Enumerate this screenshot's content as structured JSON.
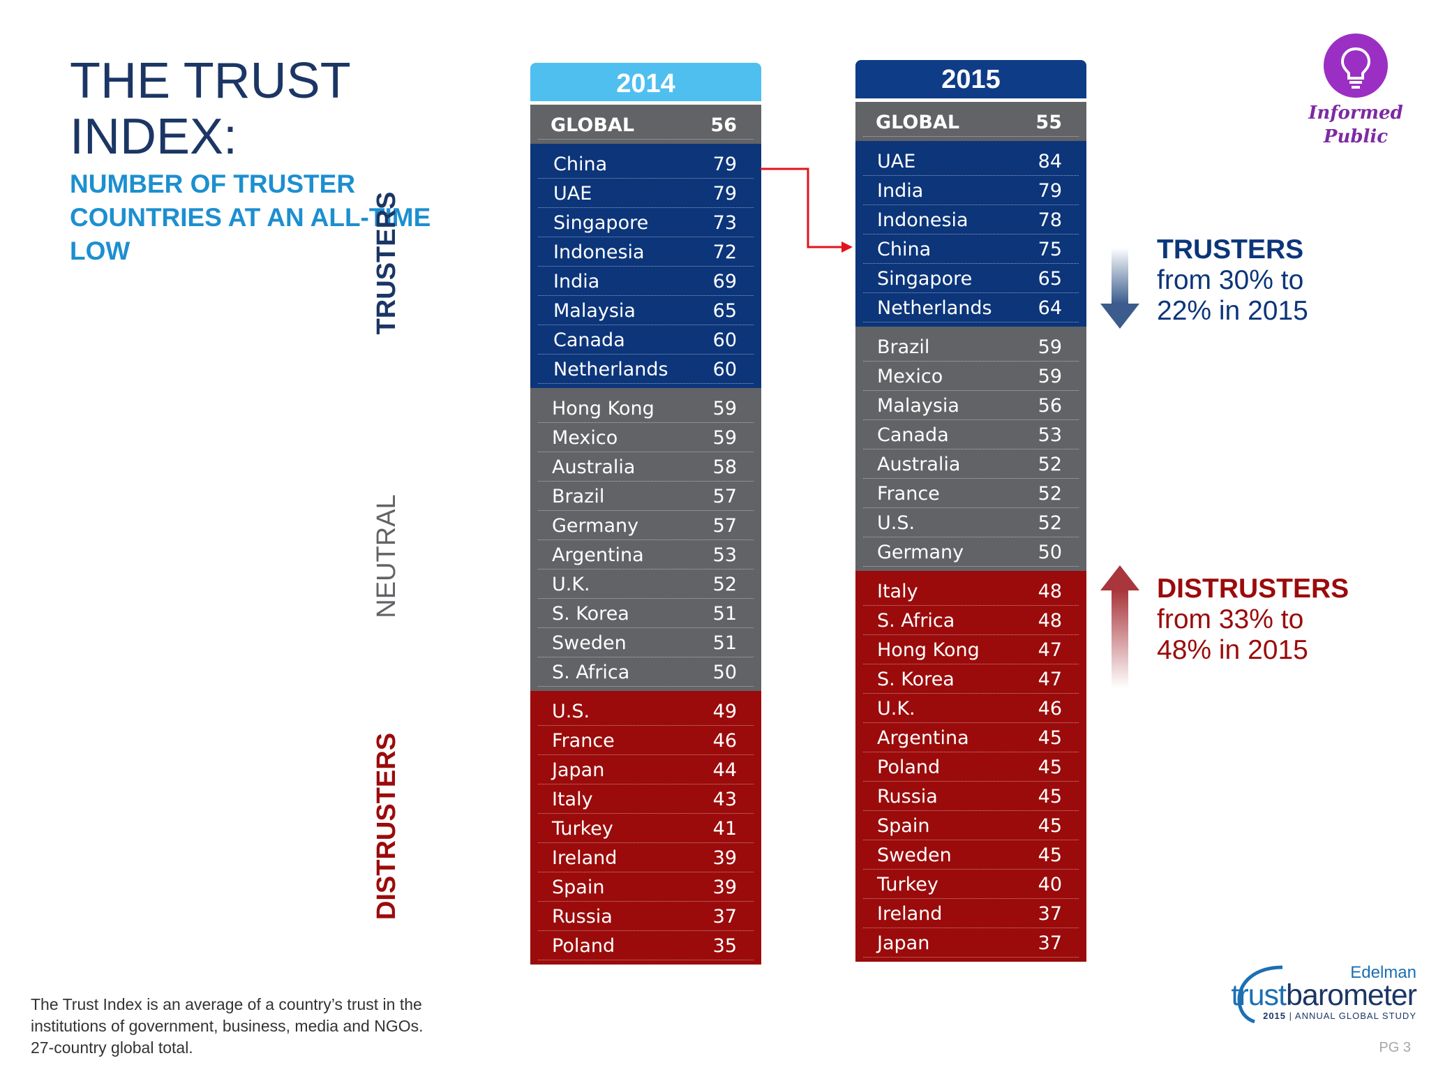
{
  "title": "THE TRUST INDEX:",
  "subtitle": "NUMBER OF TRUSTER COUNTRIES AT AN ALL-TIME LOW",
  "labels": {
    "trusters": "TRUSTERS",
    "neutral": "NEUTRAL",
    "distrusters": "DISTRUSTERS"
  },
  "col2014": {
    "year": "2014",
    "global": {
      "label": "GLOBAL",
      "value": "56"
    },
    "trusters": [
      {
        "c": "China",
        "v": "79"
      },
      {
        "c": "UAE",
        "v": "79"
      },
      {
        "c": "Singapore",
        "v": "73"
      },
      {
        "c": "Indonesia",
        "v": "72"
      },
      {
        "c": "India",
        "v": "69"
      },
      {
        "c": "Malaysia",
        "v": "65"
      },
      {
        "c": "Canada",
        "v": "60"
      },
      {
        "c": "Netherlands",
        "v": "60"
      }
    ],
    "neutral": [
      {
        "c": "Hong Kong",
        "v": "59"
      },
      {
        "c": "Mexico",
        "v": "59"
      },
      {
        "c": "Australia",
        "v": "58"
      },
      {
        "c": "Brazil",
        "v": "57"
      },
      {
        "c": "Germany",
        "v": "57"
      },
      {
        "c": "Argentina",
        "v": "53"
      },
      {
        "c": "U.K.",
        "v": "52"
      },
      {
        "c": "S. Korea",
        "v": "51"
      },
      {
        "c": "Sweden",
        "v": "51"
      },
      {
        "c": "S. Africa",
        "v": "50"
      }
    ],
    "distrusters": [
      {
        "c": "U.S.",
        "v": "49"
      },
      {
        "c": "France",
        "v": "46"
      },
      {
        "c": "Japan",
        "v": "44"
      },
      {
        "c": "Italy",
        "v": "43"
      },
      {
        "c": "Turkey",
        "v": "41"
      },
      {
        "c": "Ireland",
        "v": "39"
      },
      {
        "c": "Spain",
        "v": "39"
      },
      {
        "c": "Russia",
        "v": "37"
      },
      {
        "c": "Poland",
        "v": "35"
      }
    ]
  },
  "col2015": {
    "year": "2015",
    "global": {
      "label": "GLOBAL",
      "value": "55"
    },
    "trusters": [
      {
        "c": "UAE",
        "v": "84"
      },
      {
        "c": "India",
        "v": "79"
      },
      {
        "c": "Indonesia",
        "v": "78"
      },
      {
        "c": "China",
        "v": "75"
      },
      {
        "c": "Singapore",
        "v": "65"
      },
      {
        "c": "Netherlands",
        "v": "64"
      }
    ],
    "neutral": [
      {
        "c": "Brazil",
        "v": "59"
      },
      {
        "c": "Mexico",
        "v": "59"
      },
      {
        "c": "Malaysia",
        "v": "56"
      },
      {
        "c": "Canada",
        "v": "53"
      },
      {
        "c": "Australia",
        "v": "52"
      },
      {
        "c": "France",
        "v": "52"
      },
      {
        "c": "U.S.",
        "v": "52"
      },
      {
        "c": "Germany",
        "v": "50"
      }
    ],
    "distrusters": [
      {
        "c": "Italy",
        "v": "48"
      },
      {
        "c": "S. Africa",
        "v": "48"
      },
      {
        "c": "Hong Kong",
        "v": "47"
      },
      {
        "c": "S. Korea",
        "v": "47"
      },
      {
        "c": "U.K.",
        "v": "46"
      },
      {
        "c": "Argentina",
        "v": "45"
      },
      {
        "c": "Poland",
        "v": "45"
      },
      {
        "c": "Russia",
        "v": "45"
      },
      {
        "c": "Spain",
        "v": "45"
      },
      {
        "c": "Sweden",
        "v": "45"
      },
      {
        "c": "Turkey",
        "v": "40"
      },
      {
        "c": "Ireland",
        "v": "37"
      },
      {
        "c": "Japan",
        "v": "37"
      }
    ]
  },
  "callouts": {
    "trusters": {
      "title": "TRUSTERS",
      "line1": "from 30% to",
      "line2": "22% in 2015"
    },
    "distrusters": {
      "title": "DISTRUSTERS",
      "line1": "from 33% to",
      "line2": "48% in 2015"
    }
  },
  "badge": {
    "line1": "Informed",
    "line2": "Public",
    "icon": "lightbulb-icon"
  },
  "footnote": {
    "line1": "The Trust Index is an average of a country’s trust in the",
    "line2": "institutions of government, business, media and NGOs.",
    "line3": "27-country global total."
  },
  "logo": {
    "brand": "Edelman",
    "trust": "trust",
    "barometer": "barometer",
    "year": "2015",
    "study": "ANNUAL GLOBAL STUDY"
  },
  "page": "PG 3",
  "colors": {
    "blue": "#0c357a",
    "grey": "#626366",
    "red": "#9b0b0b",
    "light_blue": "#4fbff0",
    "purple": "#9b2fc3"
  }
}
